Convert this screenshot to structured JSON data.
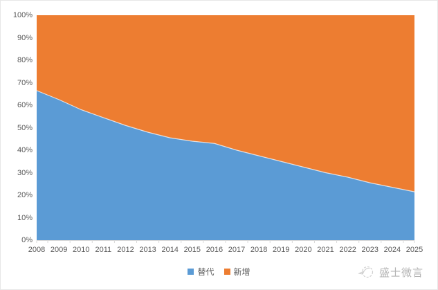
{
  "chart_data": {
    "type": "area",
    "stacked_percent": true,
    "title": "",
    "xlabel": "",
    "ylabel": "",
    "x": [
      "2008",
      "2009",
      "2010",
      "2011",
      "2012",
      "2013",
      "2014",
      "2015",
      "2016",
      "2017",
      "2018",
      "2019",
      "2020",
      "2021",
      "2022",
      "2023",
      "2024",
      "2025"
    ],
    "series": [
      {
        "name": "替代",
        "color": "#5B9BD5",
        "values": [
          66.5,
          62.5,
          58,
          54.5,
          51,
          48,
          45.5,
          44,
          43,
          40,
          37.5,
          35,
          32.5,
          30,
          28,
          25.5,
          23.5,
          21.5
        ]
      },
      {
        "name": "新增",
        "color": "#ED7D31",
        "values": [
          33.5,
          37.5,
          42,
          45.5,
          49,
          52,
          54.5,
          56,
          57,
          60,
          62.5,
          65,
          67.5,
          70,
          72,
          74.5,
          76.5,
          78.5
        ]
      }
    ],
    "ylim": [
      0,
      100
    ],
    "y_tick_step": 10,
    "y_tick_suffix": "%",
    "grid": false,
    "legend_position": "bottom"
  },
  "legend": {
    "items": [
      {
        "label": "替代",
        "color": "#5B9BD5"
      },
      {
        "label": "新增",
        "color": "#ED7D31"
      }
    ]
  },
  "watermark": {
    "text": "盛士微言"
  },
  "colors": {
    "series_blue": "#5B9BD5",
    "series_orange": "#ED7D31",
    "axis_text": "#595959",
    "axis_line": "#d9d9d9",
    "boundary_line": "rgba(255,255,255,0.7)",
    "frame_border": "#e7e7e7",
    "watermark": "#b3b3b3",
    "watermark_icon": "#cfcfcf"
  }
}
